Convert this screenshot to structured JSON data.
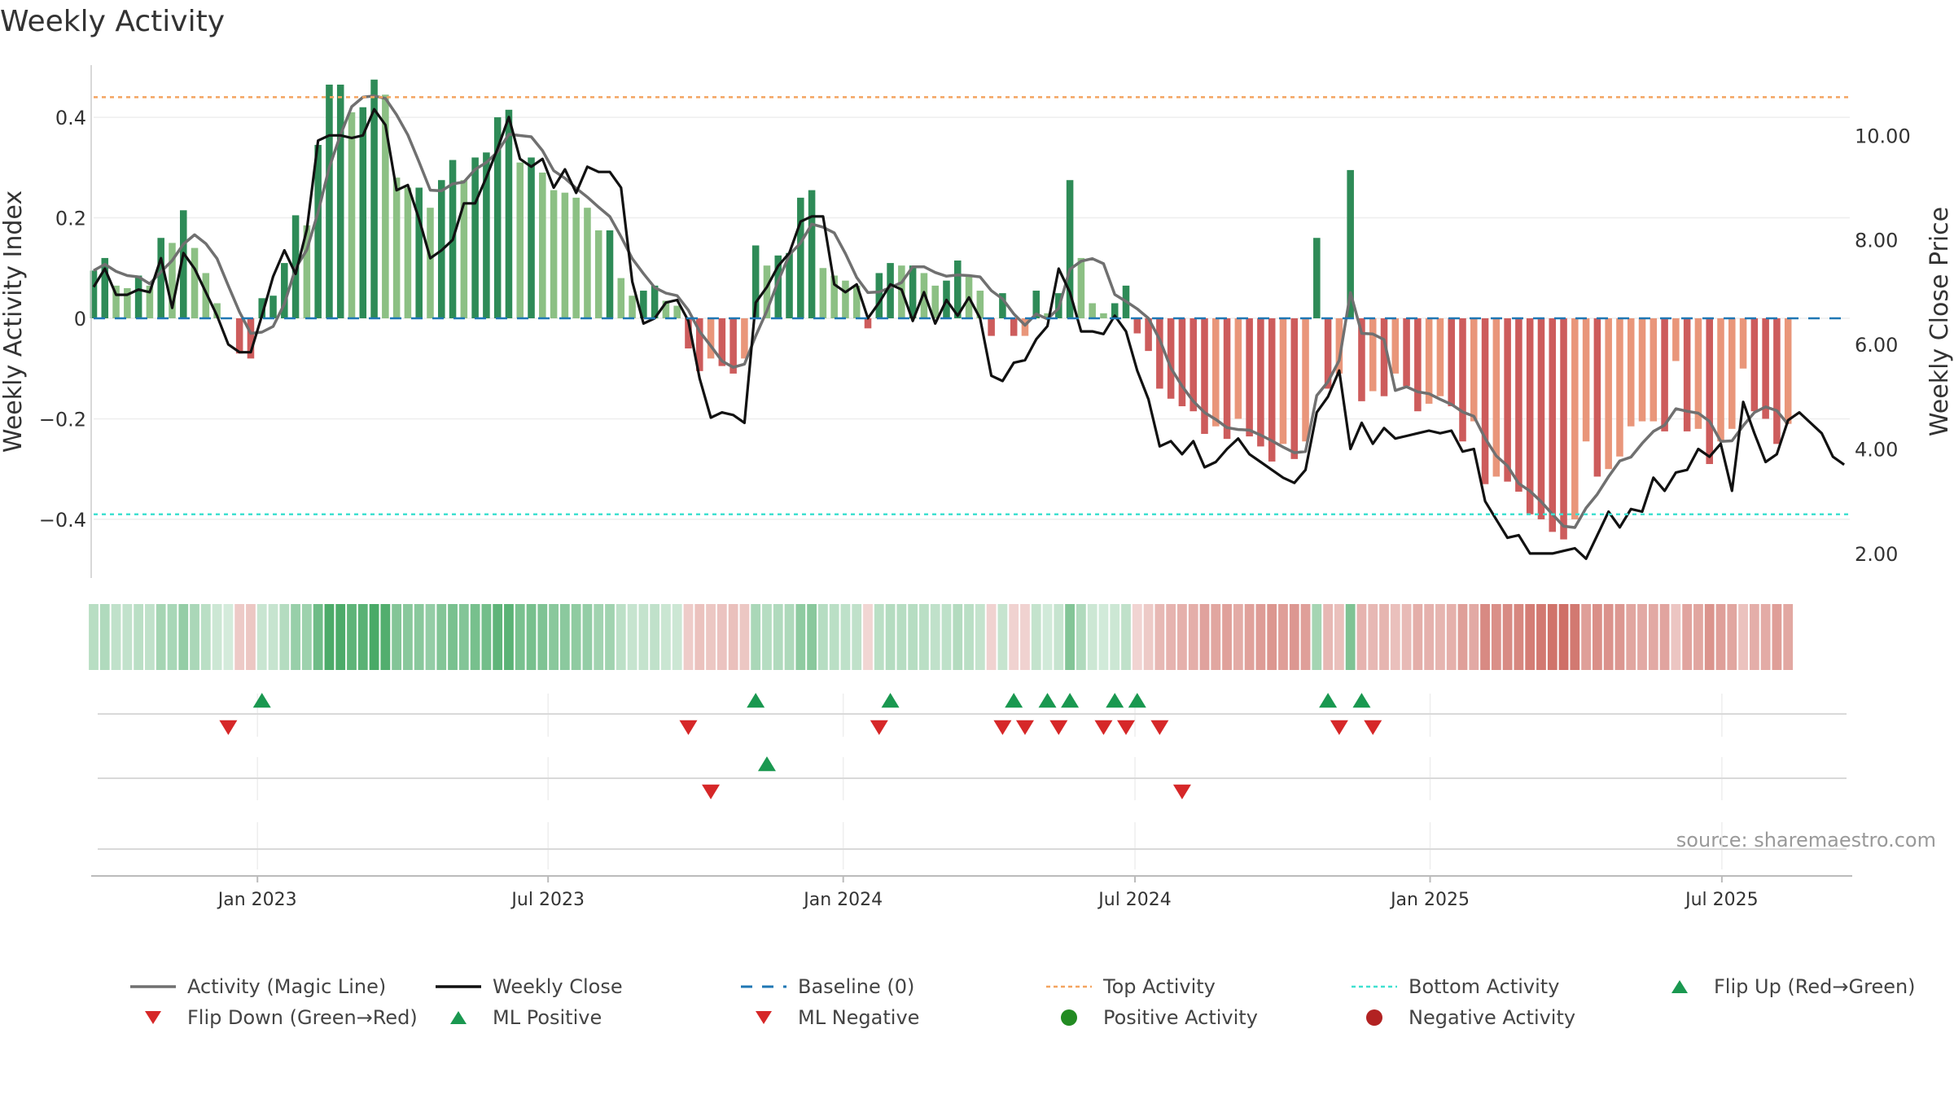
{
  "chart_data": {
    "type": "bar",
    "title": "Weekly Activity",
    "ylabel": "Weekly Activity Index",
    "y2label": "Weekly Close Price",
    "ylim": [
      -0.52,
      0.52
    ],
    "y2lim": [
      1.5,
      11.5
    ],
    "yticks": [
      0.4,
      0.2,
      0,
      -0.2,
      -0.4
    ],
    "ytick_labels": [
      "0.4",
      "0.2",
      "0",
      "−0.2",
      "−0.4"
    ],
    "y2ticks": [
      10,
      8,
      6,
      4,
      2
    ],
    "y2tick_labels": [
      "10.00",
      "8.00",
      "6.00",
      "4.00",
      "2.00"
    ],
    "top_activity": 0.44,
    "bottom_activity": -0.39,
    "x_range_weeks": [
      0,
      156.5
    ],
    "xticks": [
      {
        "label": "Jan 2023",
        "week": 14.6
      },
      {
        "label": "Jul 2023",
        "week": 40.5
      },
      {
        "label": "Jan 2024",
        "week": 66.8
      },
      {
        "label": "Jul 2024",
        "week": 92.8
      },
      {
        "label": "Jan 2025",
        "week": 119.1
      },
      {
        "label": "Jul 2025",
        "week": 145.1
      }
    ],
    "activity": [
      0.095,
      0.12,
      0.065,
      0.06,
      0.085,
      0.065,
      0.16,
      0.15,
      0.215,
      0.14,
      0.09,
      0.03,
      0.0,
      -0.07,
      -0.08,
      0.04,
      0.045,
      0.11,
      0.205,
      0.185,
      0.345,
      0.465,
      0.465,
      0.41,
      0.42,
      0.475,
      0.445,
      0.28,
      0.26,
      0.26,
      0.22,
      0.275,
      0.315,
      0.275,
      0.32,
      0.33,
      0.4,
      0.415,
      0.31,
      0.32,
      0.29,
      0.255,
      0.25,
      0.24,
      0.22,
      0.175,
      0.175,
      0.08,
      0.045,
      0.055,
      0.065,
      0.035,
      0.025,
      -0.06,
      -0.105,
      -0.08,
      -0.095,
      -0.11,
      -0.08,
      0.145,
      0.105,
      0.125,
      0.13,
      0.24,
      0.255,
      0.1,
      0.085,
      0.075,
      0.065,
      -0.02,
      0.09,
      0.11,
      0.105,
      0.105,
      0.09,
      0.065,
      0.075,
      0.115,
      0.085,
      0.055,
      -0.035,
      0.05,
      -0.035,
      -0.035,
      0.055,
      0.01,
      0.05,
      0.275,
      0.12,
      0.03,
      0.01,
      0.03,
      0.065,
      -0.03,
      -0.065,
      -0.14,
      -0.16,
      -0.175,
      -0.185,
      -0.23,
      -0.215,
      -0.24,
      -0.2,
      -0.235,
      -0.255,
      -0.285,
      -0.25,
      -0.28,
      -0.245,
      0.16,
      -0.14,
      -0.11,
      0.295,
      -0.165,
      -0.145,
      -0.155,
      -0.11,
      -0.135,
      -0.185,
      -0.17,
      -0.155,
      -0.175,
      -0.245,
      -0.205,
      -0.33,
      -0.315,
      -0.325,
      -0.345,
      -0.39,
      -0.4,
      -0.425,
      -0.44,
      -0.4,
      -0.245,
      -0.315,
      -0.3,
      -0.275,
      -0.215,
      -0.205,
      -0.205,
      -0.225,
      -0.085,
      -0.225,
      -0.22,
      -0.29,
      -0.245,
      -0.22,
      -0.1,
      -0.185,
      -0.2,
      -0.25,
      -0.21
    ],
    "price_anchors": [
      [
        0,
        7.1
      ],
      [
        1,
        7.45
      ],
      [
        2,
        6.95
      ],
      [
        3,
        6.95
      ],
      [
        4,
        7.05
      ],
      [
        5,
        7.0
      ],
      [
        6,
        7.65
      ],
      [
        7,
        6.7
      ],
      [
        8,
        7.75
      ],
      [
        9,
        7.45
      ],
      [
        10,
        7.0
      ],
      [
        11,
        6.55
      ],
      [
        12,
        6.0
      ],
      [
        13,
        5.85
      ],
      [
        14,
        5.85
      ],
      [
        15,
        6.55
      ],
      [
        16,
        7.3
      ],
      [
        17,
        7.8
      ],
      [
        18,
        7.35
      ],
      [
        19,
        8.2
      ],
      [
        20,
        9.9
      ],
      [
        21,
        10.0
      ],
      [
        22,
        10.0
      ],
      [
        23,
        9.95
      ],
      [
        24,
        10.0
      ],
      [
        25,
        10.5
      ],
      [
        26,
        10.2
      ],
      [
        27,
        8.95
      ],
      [
        28,
        9.05
      ],
      [
        29,
        8.4
      ],
      [
        30,
        7.65
      ],
      [
        31,
        7.8
      ],
      [
        32,
        8.0
      ],
      [
        33,
        8.7
      ],
      [
        34,
        8.7
      ],
      [
        35,
        9.2
      ],
      [
        36,
        9.75
      ],
      [
        37,
        10.35
      ],
      [
        38,
        9.55
      ],
      [
        39,
        9.4
      ],
      [
        40,
        9.55
      ],
      [
        41,
        9.0
      ],
      [
        42,
        9.35
      ],
      [
        43,
        8.9
      ],
      [
        44,
        9.4
      ],
      [
        45,
        9.3
      ],
      [
        46,
        9.3
      ],
      [
        47,
        9.0
      ],
      [
        48,
        7.2
      ],
      [
        49,
        6.4
      ],
      [
        50,
        6.5
      ],
      [
        51,
        6.8
      ],
      [
        52,
        6.85
      ],
      [
        53,
        6.45
      ],
      [
        54,
        5.35
      ],
      [
        55,
        4.6
      ],
      [
        56,
        4.7
      ],
      [
        57,
        4.65
      ],
      [
        58,
        4.5
      ],
      [
        59,
        6.8
      ],
      [
        60,
        7.1
      ],
      [
        61,
        7.5
      ],
      [
        62,
        7.75
      ],
      [
        63,
        8.35
      ],
      [
        64,
        8.45
      ],
      [
        65,
        8.45
      ],
      [
        66,
        7.15
      ],
      [
        67,
        7.0
      ],
      [
        68,
        7.15
      ],
      [
        69,
        6.5
      ],
      [
        70,
        6.8
      ],
      [
        71,
        7.15
      ],
      [
        72,
        7.05
      ],
      [
        73,
        6.45
      ],
      [
        74,
        7.0
      ],
      [
        75,
        6.4
      ],
      [
        76,
        6.85
      ],
      [
        77,
        6.55
      ],
      [
        78,
        6.9
      ],
      [
        79,
        6.5
      ],
      [
        80,
        5.4
      ],
      [
        81,
        5.3
      ],
      [
        82,
        5.65
      ],
      [
        83,
        5.7
      ],
      [
        84,
        6.1
      ],
      [
        85,
        6.35
      ],
      [
        86,
        7.45
      ],
      [
        87,
        7.0
      ],
      [
        88,
        6.25
      ],
      [
        89,
        6.25
      ],
      [
        90,
        6.2
      ],
      [
        91,
        6.55
      ],
      [
        92,
        6.25
      ],
      [
        93,
        5.5
      ],
      [
        94,
        4.95
      ],
      [
        95,
        4.05
      ],
      [
        96,
        4.15
      ],
      [
        97,
        3.9
      ],
      [
        98,
        4.15
      ],
      [
        99,
        3.65
      ],
      [
        100,
        3.75
      ],
      [
        101,
        4.0
      ],
      [
        102,
        4.2
      ],
      [
        103,
        3.9
      ],
      [
        104,
        3.75
      ],
      [
        105,
        3.6
      ],
      [
        106,
        3.45
      ],
      [
        107,
        3.35
      ],
      [
        108,
        3.6
      ],
      [
        109,
        4.7
      ],
      [
        110,
        5.0
      ],
      [
        111,
        5.5
      ],
      [
        112,
        4.0
      ],
      [
        113,
        4.5
      ],
      [
        114,
        4.1
      ],
      [
        115,
        4.4
      ],
      [
        116,
        4.2
      ],
      [
        117,
        4.25
      ],
      [
        118,
        4.3
      ],
      [
        119,
        4.35
      ],
      [
        120,
        4.3
      ],
      [
        121,
        4.35
      ],
      [
        122,
        3.95
      ],
      [
        123,
        4.0
      ],
      [
        124,
        3.0
      ],
      [
        125,
        2.65
      ],
      [
        126,
        2.3
      ],
      [
        127,
        2.35
      ],
      [
        128,
        2.0
      ],
      [
        129,
        2.0
      ],
      [
        130,
        2.0
      ],
      [
        131,
        2.05
      ],
      [
        132,
        2.1
      ],
      [
        133,
        1.9
      ],
      [
        134,
        2.35
      ],
      [
        135,
        2.8
      ],
      [
        136,
        2.5
      ],
      [
        137,
        2.85
      ],
      [
        138,
        2.8
      ],
      [
        139,
        3.45
      ],
      [
        140,
        3.2
      ],
      [
        141,
        3.55
      ],
      [
        142,
        3.6
      ],
      [
        143,
        4.0
      ],
      [
        144,
        3.85
      ],
      [
        145,
        4.1
      ],
      [
        146,
        3.2
      ],
      [
        147,
        4.9
      ],
      [
        148,
        4.3
      ],
      [
        149,
        3.75
      ],
      [
        150,
        3.9
      ],
      [
        151,
        4.55
      ],
      [
        152,
        4.7
      ],
      [
        153,
        4.5
      ],
      [
        154,
        4.3
      ],
      [
        155,
        3.85
      ],
      [
        156,
        3.7
      ]
    ],
    "flip_up_weeks": [
      15,
      59,
      71,
      82,
      85,
      87,
      91,
      93,
      110,
      113
    ],
    "flip_down_weeks": [
      12,
      53,
      70,
      81,
      83,
      86,
      90,
      92,
      95,
      111,
      114
    ],
    "ml_positive_weeks": [
      60
    ],
    "ml_negative_weeks": [
      55,
      97
    ],
    "source": "source: sharemaestro.com",
    "colors": {
      "green_dark": "#2e8b57",
      "green_light": "#8cc084",
      "red_dark": "#cd5c5c",
      "red_light": "#e9967a",
      "magic_line": "#707070",
      "close_line": "#111111",
      "baseline": "#1f77b4",
      "top_activity": "#f4a460",
      "bottom_activity": "#40e0d0",
      "flip_up": "#1a9850",
      "flip_down": "#d62728",
      "positive_dot": "#228b22",
      "negative_dot": "#b22222"
    },
    "legend": [
      {
        "label": "Activity (Magic Line)",
        "kind": "line",
        "color": "#707070"
      },
      {
        "label": "Weekly Close",
        "kind": "line",
        "color": "#111111"
      },
      {
        "label": "Baseline (0)",
        "kind": "dash",
        "color": "#1f77b4"
      },
      {
        "label": "Top Activity",
        "kind": "dot-line",
        "color": "#f4a460"
      },
      {
        "label": "Bottom Activity",
        "kind": "dot-line",
        "color": "#40e0d0"
      },
      {
        "label": "Flip Up (Red→Green)",
        "kind": "tri-up",
        "color": "#1a9850"
      },
      {
        "label": "Flip Down (Green→Red)",
        "kind": "tri-down",
        "color": "#d62728"
      },
      {
        "label": "ML Positive",
        "kind": "tri-up",
        "color": "#1a9850"
      },
      {
        "label": "ML Negative",
        "kind": "tri-down",
        "color": "#d62728"
      },
      {
        "label": "Positive Activity",
        "kind": "circle",
        "color": "#228b22"
      },
      {
        "label": "Negative Activity",
        "kind": "circle",
        "color": "#b22222"
      }
    ]
  }
}
